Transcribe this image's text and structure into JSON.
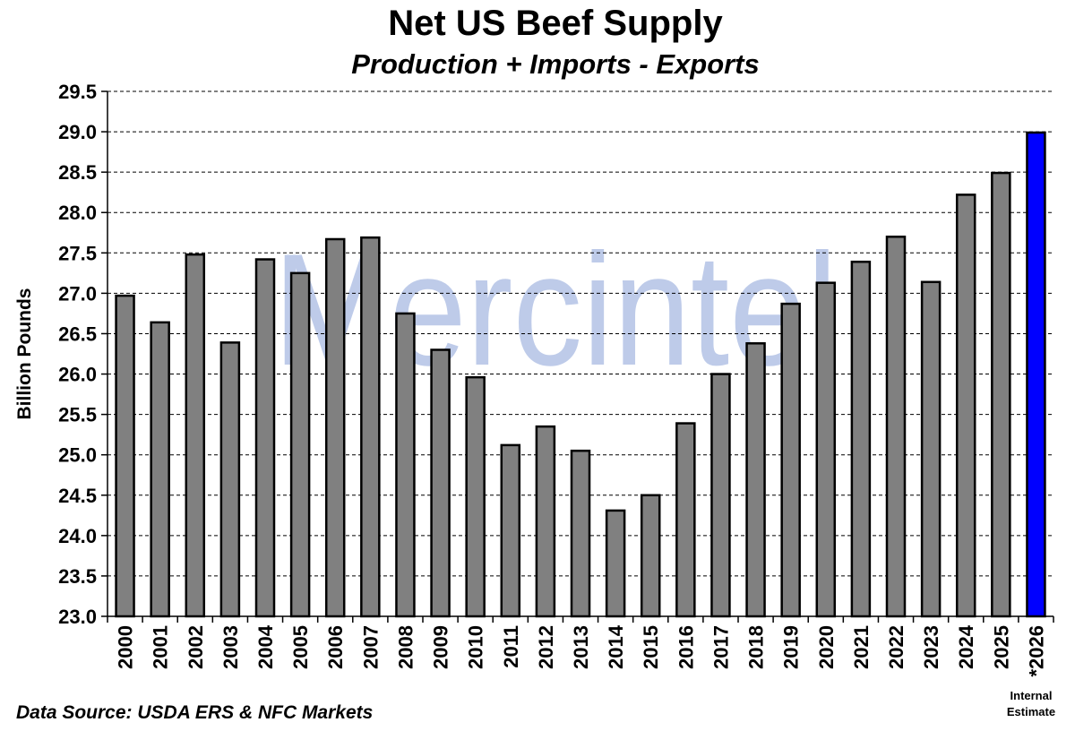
{
  "chart_data": {
    "type": "bar",
    "title": "Net US Beef Supply",
    "subtitle": "Production + Imports - Exports",
    "ylabel": "Billion Pounds",
    "xlabel": "",
    "ylim": [
      23.0,
      29.5
    ],
    "yticks": [
      "23.0",
      "23.5",
      "24.0",
      "24.5",
      "25.0",
      "25.5",
      "26.0",
      "26.5",
      "27.0",
      "27.5",
      "28.0",
      "28.5",
      "29.0",
      "29.5"
    ],
    "grid": true,
    "categories": [
      "2000",
      "2001",
      "2002",
      "2003",
      "2004",
      "2005",
      "2006",
      "2007",
      "2008",
      "2009",
      "2010",
      "2011",
      "2012",
      "2013",
      "2014",
      "2015",
      "2016",
      "2017",
      "2018",
      "2019",
      "2020",
      "2021",
      "2022",
      "2023",
      "2024",
      "2025",
      "*2026"
    ],
    "values": [
      26.97,
      26.64,
      27.48,
      26.39,
      27.42,
      27.25,
      27.67,
      27.69,
      26.75,
      26.3,
      25.96,
      25.12,
      25.35,
      25.05,
      24.31,
      24.5,
      25.39,
      26.0,
      26.38,
      26.87,
      27.13,
      27.39,
      27.7,
      27.14,
      28.22,
      28.49,
      28.99
    ],
    "bar_color": "#808080",
    "highlight_color": "#0000ff",
    "highlight_index": 26
  },
  "watermark": "Mercintel",
  "watermark_color": "#b3c3e6",
  "source": "Data Source: USDA ERS & NFC Markets",
  "estimate_note": {
    "line1": "Internal",
    "line2": "Estimate"
  }
}
